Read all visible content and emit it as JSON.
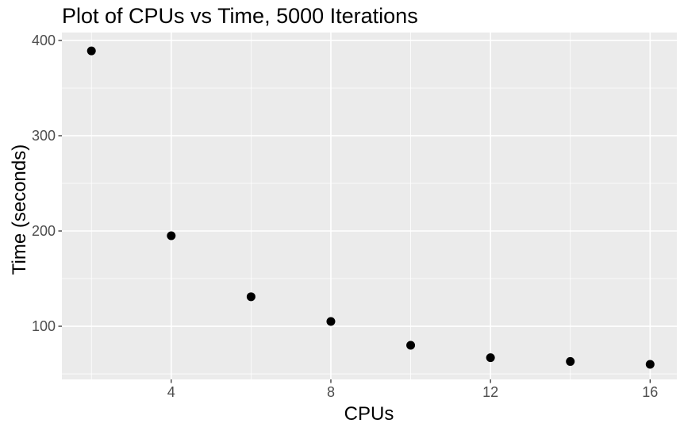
{
  "chart_data": {
    "type": "scatter",
    "title": "Plot of CPUs vs Time, 5000 Iterations",
    "xlabel": "CPUs",
    "ylabel": "Time (seconds)",
    "x": [
      2,
      4,
      6,
      8,
      10,
      12,
      14,
      16
    ],
    "y": [
      389,
      195,
      131,
      105,
      80,
      67,
      63,
      60
    ],
    "x_major_ticks": [
      4,
      8,
      12,
      16
    ],
    "x_minor_gridlines": [
      2,
      6,
      10,
      14
    ],
    "y_major_ticks": [
      100,
      200,
      300,
      400
    ],
    "y_minor_gridlines": [
      50,
      150,
      250,
      350
    ],
    "xlim": [
      1.26,
      16.67
    ],
    "ylim": [
      44.2,
      408.3
    ],
    "grid": "major-and-minor",
    "legend": "none",
    "point_color": "#000000",
    "point_radius": 5.5,
    "panel_background": "#ebebeb",
    "gridline_color": "#ffffff",
    "tick_label_color": "#4d4d4d",
    "tick_mark_color": "#333333",
    "title_color": "#000000"
  }
}
